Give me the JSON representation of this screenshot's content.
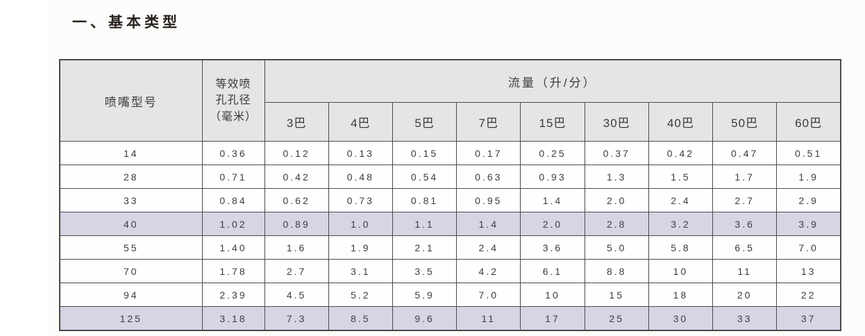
{
  "page": {
    "title": "一、基本类型"
  },
  "table": {
    "col1_header": "喷嘴型号",
    "col2_header_lines": [
      "等效喷",
      "孔孔径",
      "（毫米）"
    ],
    "flow_header": "流量（升/分）",
    "pressure_headers": [
      "3巴",
      "4巴",
      "5巴",
      "7巴",
      "15巴",
      "30巴",
      "40巴",
      "50巴",
      "60巴"
    ],
    "rows": [
      {
        "model": "14",
        "diameter": "0.36",
        "values": [
          "0.12",
          "0.13",
          "0.15",
          "0.17",
          "0.25",
          "0.37",
          "0.42",
          "0.47",
          "0.51"
        ],
        "highlight": false
      },
      {
        "model": "28",
        "diameter": "0.71",
        "values": [
          "0.42",
          "0.48",
          "0.54",
          "0.63",
          "0.93",
          "1.3",
          "1.5",
          "1.7",
          "1.9"
        ],
        "highlight": false
      },
      {
        "model": "33",
        "diameter": "0.84",
        "values": [
          "0.62",
          "0.73",
          "0.81",
          "0.95",
          "1.4",
          "2.0",
          "2.4",
          "2.7",
          "2.9"
        ],
        "highlight": false
      },
      {
        "model": "40",
        "diameter": "1.02",
        "values": [
          "0.89",
          "1.0",
          "1.1",
          "1.4",
          "2.0",
          "2.8",
          "3.2",
          "3.6",
          "3.9"
        ],
        "highlight": true
      },
      {
        "model": "55",
        "diameter": "1.40",
        "values": [
          "1.6",
          "1.9",
          "2.1",
          "2.4",
          "3.6",
          "5.0",
          "5.8",
          "6.5",
          "7.0"
        ],
        "highlight": false
      },
      {
        "model": "70",
        "diameter": "1.78",
        "values": [
          "2.7",
          "3.1",
          "3.5",
          "4.2",
          "6.1",
          "8.8",
          "10",
          "11",
          "13"
        ],
        "highlight": false
      },
      {
        "model": "94",
        "diameter": "2.39",
        "values": [
          "4.5",
          "5.2",
          "5.9",
          "7.0",
          "10",
          "15",
          "18",
          "20",
          "22"
        ],
        "highlight": false
      },
      {
        "model": "125",
        "diameter": "3.18",
        "values": [
          "7.3",
          "8.5",
          "9.6",
          "11",
          "17",
          "25",
          "30",
          "33",
          "37"
        ],
        "highlight": true
      }
    ],
    "colors": {
      "header_bg": "#e5e5e3",
      "highlight_bg": "#d7d4e6",
      "border": "#4a4a4a",
      "text": "#3c3c3c"
    }
  }
}
